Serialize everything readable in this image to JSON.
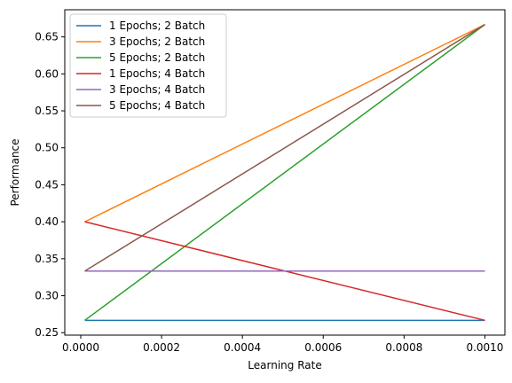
{
  "chart_data": {
    "type": "line",
    "title": "",
    "xlabel": "Learning Rate",
    "ylabel": "Performance",
    "x": [
      1e-05,
      0.001
    ],
    "xlim": [
      -3.95e-05,
      0.0010495
    ],
    "ylim": [
      0.2467,
      0.6867
    ],
    "xticks": [
      0.0,
      0.0002,
      0.0004,
      0.0006,
      0.0008,
      0.001
    ],
    "xtick_labels": [
      "0.0000",
      "0.0002",
      "0.0004",
      "0.0006",
      "0.0008",
      "0.0010"
    ],
    "yticks": [
      0.25,
      0.3,
      0.35,
      0.4,
      0.45,
      0.5,
      0.55,
      0.6,
      0.65
    ],
    "ytick_labels": [
      "0.25",
      "0.30",
      "0.35",
      "0.40",
      "0.45",
      "0.50",
      "0.55",
      "0.60",
      "0.65"
    ],
    "grid": false,
    "legend_position": "top-left",
    "series": [
      {
        "name": "1 Epochs; 2 Batch",
        "color": "#1f77b4",
        "values": [
          0.2667,
          0.2667
        ]
      },
      {
        "name": "3 Epochs; 2 Batch",
        "color": "#ff7f0e",
        "values": [
          0.4,
          0.6667
        ]
      },
      {
        "name": "5 Epochs; 2 Batch",
        "color": "#2ca02c",
        "values": [
          0.2667,
          0.6667
        ]
      },
      {
        "name": "1 Epochs; 4 Batch",
        "color": "#d62728",
        "values": [
          0.4,
          0.2667
        ]
      },
      {
        "name": "3 Epochs; 4 Batch",
        "color": "#9467bd",
        "values": [
          0.3333,
          0.3333
        ]
      },
      {
        "name": "5 Epochs; 4 Batch",
        "color": "#8c564b",
        "values": [
          0.3333,
          0.6667
        ]
      }
    ]
  }
}
